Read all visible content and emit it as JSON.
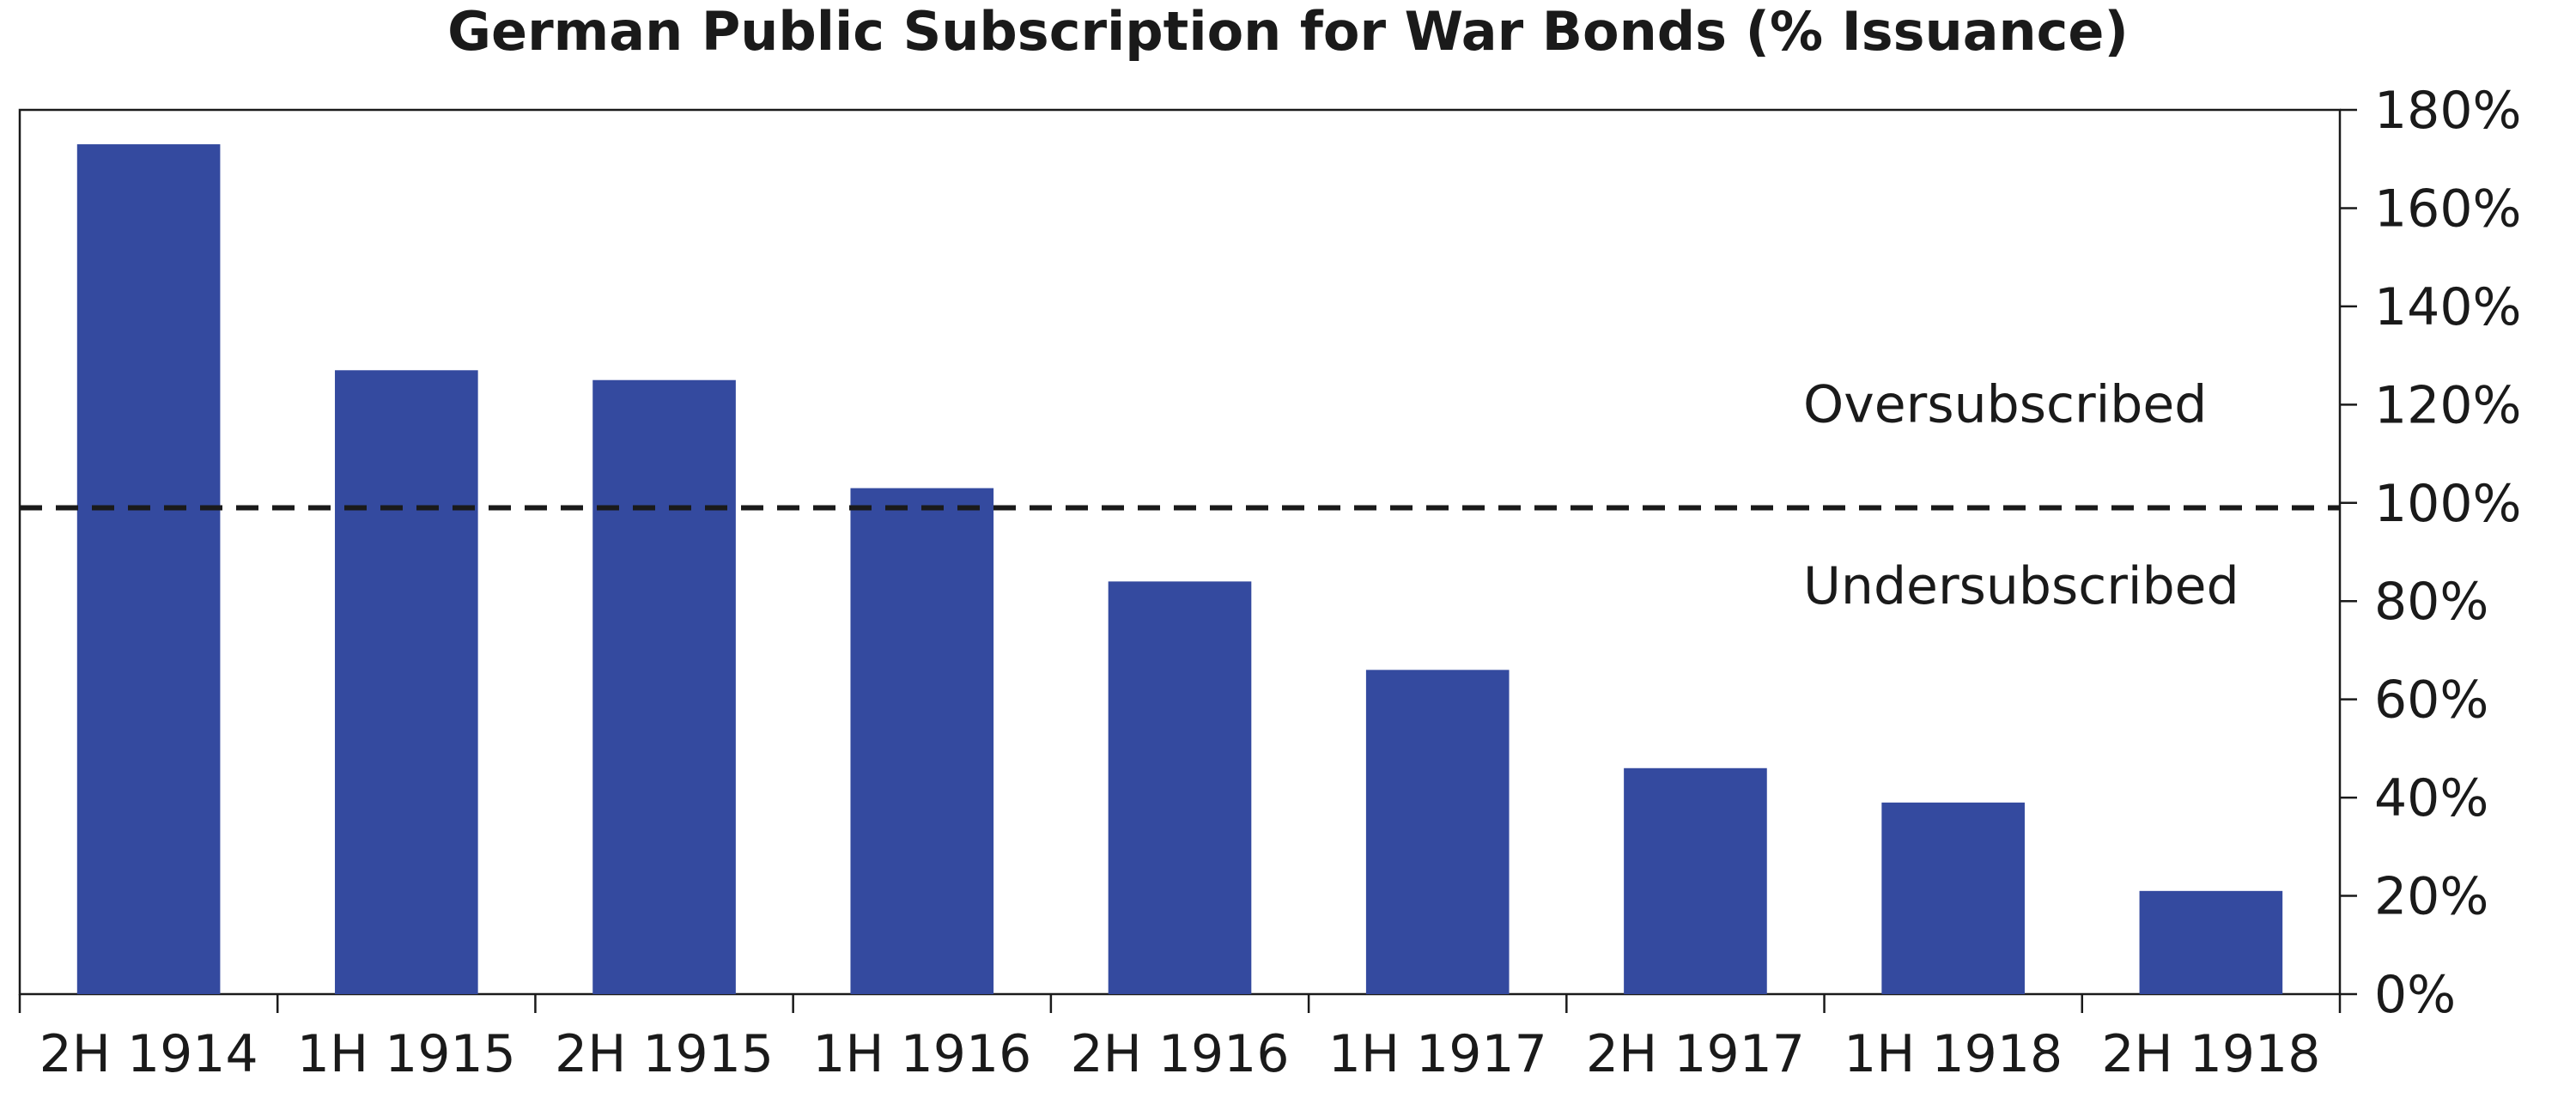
{
  "chart_data": {
    "type": "bar",
    "title": "German Public Subscription for War Bonds (% Issuance)",
    "categories": [
      "2H 1914",
      "1H 1915",
      "2H 1915",
      "1H 1916",
      "2H 1916",
      "1H 1917",
      "2H 1917",
      "1H 1918",
      "2H 1918"
    ],
    "values": [
      173,
      127,
      125,
      103,
      84,
      66,
      46,
      39,
      21
    ],
    "value_unit": "%",
    "ylim": [
      0,
      180
    ],
    "y_ticks": [
      "0%",
      "20%",
      "40%",
      "60%",
      "80%",
      "100%",
      "120%",
      "140%",
      "160%",
      "180%"
    ],
    "y_tick_values": [
      0,
      20,
      40,
      60,
      80,
      100,
      120,
      140,
      160,
      180
    ],
    "y_axis_side": "right",
    "grid": false,
    "bar_color": "#344a9f",
    "reference_line": {
      "value": 99,
      "style": "dashed",
      "color": "#1a1a1a"
    },
    "annotations": [
      {
        "text": "Oversubscribed",
        "value": 120
      },
      {
        "text": "Undersubscribed",
        "value": 83
      }
    ]
  }
}
